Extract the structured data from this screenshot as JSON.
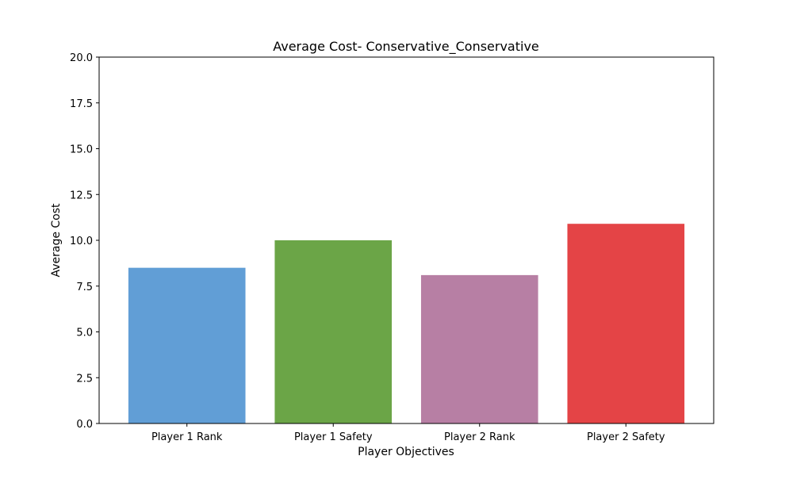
{
  "chart_data": {
    "type": "bar",
    "title": "Average Cost- Conservative_Conservative",
    "xlabel": "Player Objectives",
    "ylabel": "Average Cost",
    "categories": [
      "Player 1 Rank",
      "Player 1 Safety",
      "Player 2 Rank",
      "Player 2 Safety"
    ],
    "values": [
      8.5,
      10.0,
      8.1,
      10.9
    ],
    "colors": [
      "#619ed6",
      "#6ba547",
      "#b77fa4",
      "#e44446"
    ],
    "ylim": [
      0,
      20
    ],
    "yticks": [
      0.0,
      2.5,
      5.0,
      7.5,
      10.0,
      12.5,
      15.0,
      17.5,
      20.0
    ],
    "ytick_labels": [
      "0.0",
      "2.5",
      "5.0",
      "7.5",
      "10.0",
      "12.5",
      "15.0",
      "17.5",
      "20.0"
    ],
    "grid": false,
    "legend": "none"
  }
}
